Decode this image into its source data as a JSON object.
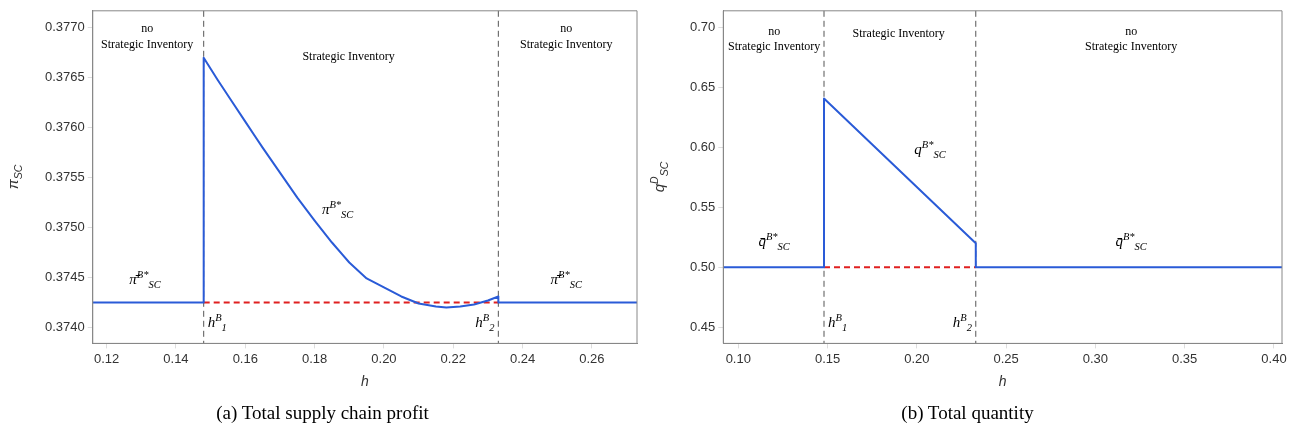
{
  "chart_data": [
    {
      "type": "line",
      "title": "(a) Total supply chain profit",
      "xlabel": "h",
      "ylabel": "π$_{SC}$",
      "xlim": [
        0.116,
        0.273
      ],
      "ylim": [
        0.37384,
        0.37717
      ],
      "xticks": [
        0.12,
        0.14,
        0.16,
        0.18,
        {
          "value": 0.2,
          "label": "0.20"
        },
        0.22,
        0.24,
        0.26
      ],
      "yticks": [
        {
          "value": 0.374,
          "label": "0.3740"
        },
        0.3745,
        {
          "value": 0.375,
          "label": "0.3750"
        },
        0.3755,
        {
          "value": 0.376,
          "label": "0.3760"
        },
        0.3765,
        {
          "value": 0.377,
          "label": "0.3770"
        }
      ],
      "grid": false,
      "legend": false,
      "marker": "none",
      "series": [
        {
          "color": "#2a5bd7",
          "line_style": "solid",
          "x": [
            0.116,
            0.148,
            0.148,
            0.152,
            0.156,
            0.16,
            0.165,
            0.17,
            0.175,
            0.18,
            0.185,
            0.19,
            0.195,
            0.2,
            0.205,
            0.21,
            0.215,
            0.218,
            0.222,
            0.226,
            0.23,
            0.233,
            0.233,
            0.273
          ],
          "values": [
            0.37425,
            0.37425,
            0.3767,
            0.37648,
            0.37627,
            0.37606,
            0.3758,
            0.37555,
            0.3753,
            0.37507,
            0.37485,
            0.37465,
            0.37449,
            0.3744,
            0.37431,
            0.37424,
            0.37421,
            0.3742,
            0.37421,
            0.37423,
            0.37427,
            0.37431,
            0.37425,
            0.37425
          ]
        },
        {
          "color": "#e02020",
          "line_style": "dashed",
          "x": [
            0.148,
            0.233
          ],
          "values": [
            0.37425,
            0.37425
          ]
        }
      ],
      "ref_lines": [
        {
          "axis": "x",
          "value": 0.148,
          "label": "h$^{B}$$_{1}$",
          "color": "#555555",
          "line_style": "dashed"
        },
        {
          "axis": "x",
          "value": 0.233,
          "label": "h$^{B}$$_{2}$",
          "color": "#555555",
          "line_style": "dashed"
        }
      ],
      "annotations": [
        "no\nStrategic Inventory",
        "Strategic Inventory",
        "no\nStrategic Inventory",
        "π̄$^{B*}$$_{SC}$",
        "π$^{B*}$$_{SC}$",
        "π̄$^{B*}$$_{SC}$"
      ]
    },
    {
      "type": "line",
      "title": "(b) Total quantity",
      "xlabel": "h",
      "ylabel": "q$^{D}$$_{SC}$",
      "xlim": [
        0.0916,
        0.4045
      ],
      "ylim": [
        0.4363,
        0.7143
      ],
      "xticks": [
        {
          "value": 0.1,
          "label": "0.10"
        },
        0.15,
        {
          "value": 0.2,
          "label": "0.20"
        },
        0.25,
        {
          "value": 0.3,
          "label": "0.30"
        },
        0.35,
        {
          "value": 0.4,
          "label": "0.40"
        }
      ],
      "yticks": [
        0.45,
        {
          "value": 0.5,
          "label": "0.50"
        },
        0.55,
        {
          "value": 0.6,
          "label": "0.60"
        },
        0.65,
        {
          "value": 0.7,
          "label": "0.70"
        }
      ],
      "grid": false,
      "legend": false,
      "marker": "none",
      "series": [
        {
          "color": "#2a5bd7",
          "line_style": "solid",
          "x": [
            0.0916,
            0.148,
            0.148,
            0.233,
            0.233,
            0.4045
          ],
          "values": [
            0.5,
            0.5,
            0.641,
            0.52,
            0.5,
            0.5
          ]
        },
        {
          "color": "#e02020",
          "line_style": "dashed",
          "x": [
            0.148,
            0.233
          ],
          "values": [
            0.5,
            0.5
          ]
        }
      ],
      "ref_lines": [
        {
          "axis": "x",
          "value": 0.148,
          "label": "h$^{B}$$_{1}$",
          "color": "#555555",
          "line_style": "dashed"
        },
        {
          "axis": "x",
          "value": 0.233,
          "label": "h$^{B}$$_{2}$",
          "color": "#555555",
          "line_style": "dashed"
        }
      ],
      "annotations": [
        "no\nStrategic Inventory",
        "Strategic Inventory",
        "no\nStrategic Inventory",
        "q̄$^{B*}$$_{SC}$",
        "q$^{B*}$$_{SC}$",
        "q̄$^{B*}$$_{SC}$"
      ]
    }
  ]
}
